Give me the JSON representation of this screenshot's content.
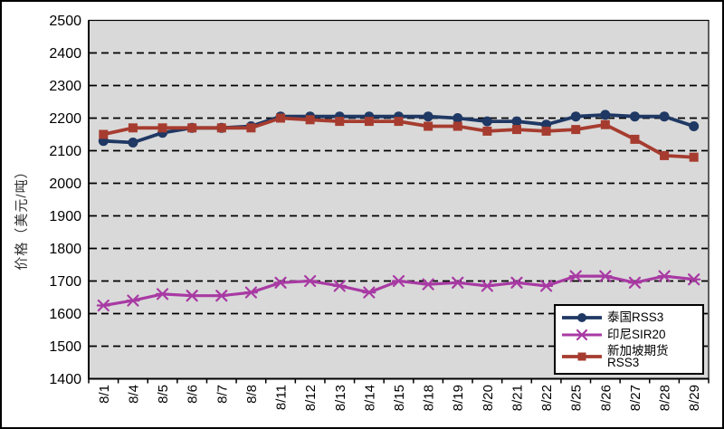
{
  "chart_data": {
    "type": "line",
    "title": "",
    "xlabel": "",
    "ylabel": "价格（美元/吨）",
    "ylim": [
      1400,
      2500
    ],
    "ytick_step": 100,
    "yticks": [
      2500,
      2400,
      2300,
      2200,
      2100,
      2000,
      1900,
      1800,
      1700,
      1600,
      1500,
      1400
    ],
    "categories": [
      "8/1",
      "8/4",
      "8/5",
      "8/6",
      "8/7",
      "8/8",
      "8/11",
      "8/12",
      "8/13",
      "8/14",
      "8/15",
      "8/18",
      "8/19",
      "8/20",
      "8/21",
      "8/22",
      "8/25",
      "8/26",
      "8/27",
      "8/28",
      "8/29"
    ],
    "series": [
      {
        "name": "泰国RSS3",
        "marker": "circle",
        "color": "#1F3864",
        "values": [
          2130,
          2125,
          2155,
          2170,
          2170,
          2175,
          2205,
          2205,
          2205,
          2205,
          2205,
          2205,
          2200,
          2190,
          2190,
          2180,
          2205,
          2210,
          2205,
          2205,
          2175
        ]
      },
      {
        "name": "印尼SIR20",
        "marker": "star",
        "color": "#A83AA3",
        "values": [
          1625,
          1640,
          1660,
          1655,
          1655,
          1665,
          1695,
          1700,
          1685,
          1665,
          1700,
          1690,
          1695,
          1685,
          1695,
          1685,
          1715,
          1715,
          1695,
          1715,
          1705
        ]
      },
      {
        "name": "新加坡期货RSS3",
        "marker": "square",
        "color": "#A63C2F",
        "values": [
          2150,
          2170,
          2170,
          2170,
          2170,
          2170,
          2200,
          2195,
          2190,
          2190,
          2190,
          2175,
          2175,
          2160,
          2165,
          2160,
          2165,
          2180,
          2135,
          2085,
          2080
        ]
      }
    ],
    "grid": "horizontal-dashed",
    "legend_position": "inside-bottom-right",
    "plot_bg": "#D9D9D9",
    "outer_bg": "#FFFFFF",
    "axis_color": "#000000"
  }
}
